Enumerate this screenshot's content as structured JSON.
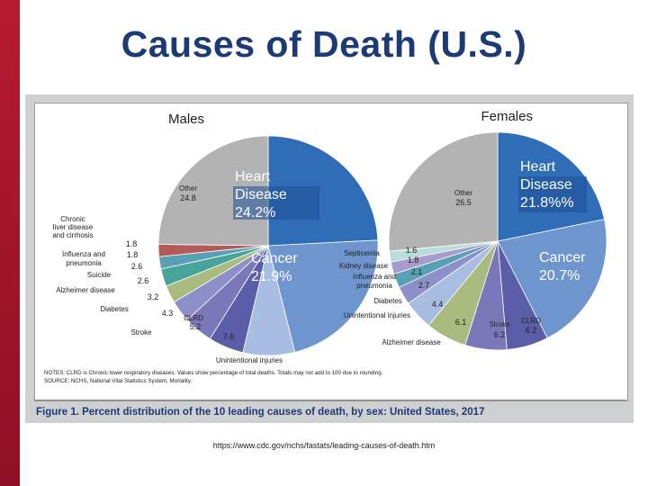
{
  "slide": {
    "title": "Causes of Death (U.S.)",
    "source_url": "https://www.cdc.gov/nchs/fastats/leading-causes-of-death.htm"
  },
  "figure": {
    "caption": "Figure 1. Percent distribution of the 10 leading causes of death, by sex: United States, 2017",
    "notes_line1": "NOTES: CLRD is Chronic lower respiratory diseases. Values show percentage of total deaths. Totals may not add to 100 due to rounding.",
    "notes_line2": "SOURCE: NCHS, National Vital Statistics System, Mortality."
  },
  "overlays": {
    "males_heart": [
      "Heart",
      "Disease",
      "24.2%"
    ],
    "males_cancer": [
      "Cancer",
      "21.9%"
    ],
    "females_heart": [
      "Heart",
      "Disease",
      "21.8%%"
    ],
    "females_cancer": [
      "Cancer",
      "20.7%"
    ]
  },
  "colors": {
    "heart": "#2f6db6",
    "cancer": "#6f95cf",
    "unintentional": "#a8bde2",
    "clrd": "#5a5ea8",
    "stroke": "#7a78b9",
    "diabetes": "#8c8fc8",
    "alzheimer": "#a9bb7e",
    "suicide": "#48a39b",
    "kidney": "#a79bd0",
    "influenza": "#5aa0b4",
    "liver": "#b45a5a",
    "septicemia": "#b9ddd9",
    "other": "#b3b3b3",
    "sidebar": "#a5172b",
    "title": "#1c3a74"
  },
  "chart_data": [
    {
      "type": "pie",
      "title": "Males",
      "slices": [
        {
          "label": "Heart Disease",
          "value": 24.2
        },
        {
          "label": "Cancer",
          "value": 21.9
        },
        {
          "label": "Unintentional injuries",
          "value": 7.6
        },
        {
          "label": "CLRD",
          "value": 5.2
        },
        {
          "label": "Stroke",
          "value": 4.3
        },
        {
          "label": "Diabetes",
          "value": 3.2
        },
        {
          "label": "Alzheimer disease",
          "value": 2.6
        },
        {
          "label": "Suicide",
          "value": 2.6
        },
        {
          "label": "Influenza and pneumonia",
          "value": 1.8
        },
        {
          "label": "Chronic liver disease and cirrhosis",
          "value": 1.8
        },
        {
          "label": "Other",
          "value": 24.8
        }
      ]
    },
    {
      "type": "pie",
      "title": "Females",
      "slices": [
        {
          "label": "Heart Disease",
          "value": 21.8
        },
        {
          "label": "Cancer",
          "value": 20.7
        },
        {
          "label": "CLRD",
          "value": 6.2
        },
        {
          "label": "Stroke",
          "value": 6.2
        },
        {
          "label": "Alzheimer disease",
          "value": 6.1
        },
        {
          "label": "Unintentional injuries",
          "value": 4.4
        },
        {
          "label": "Diabetes",
          "value": 2.7
        },
        {
          "label": "Influenza and pneumonia",
          "value": 2.1
        },
        {
          "label": "Kidney disease",
          "value": 1.8
        },
        {
          "label": "Septicemia",
          "value": 1.6
        },
        {
          "label": "Other",
          "value": 26.5
        }
      ]
    }
  ]
}
